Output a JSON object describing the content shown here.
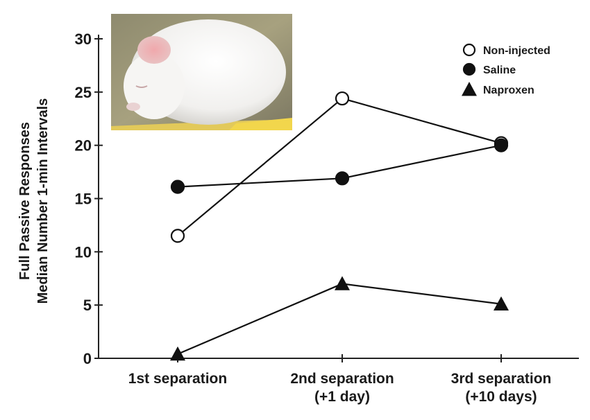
{
  "chart_data": {
    "type": "line",
    "categories": [
      "1st separation",
      "2nd separation (+1 day)",
      "3rd separation (+10 days)"
    ],
    "category_lines": [
      [
        "1st separation"
      ],
      [
        "2nd separation",
        "(+1 day)"
      ],
      [
        "3rd separation",
        "(+10 days)"
      ]
    ],
    "ylabel_lines": [
      "Full Passive Responses",
      "Median Number 1-min Intervals"
    ],
    "ylim": [
      0,
      30
    ],
    "yticks": [
      0,
      5,
      10,
      15,
      20,
      25,
      30
    ],
    "grid": false,
    "legend_position": "top-right",
    "series": [
      {
        "name": "Non-injected",
        "values": [
          11.5,
          24.4,
          20.2
        ],
        "marker": "open-circle",
        "color": "#111111"
      },
      {
        "name": "Saline",
        "values": [
          16.1,
          16.9,
          20.0
        ],
        "marker": "filled-circle",
        "color": "#111111"
      },
      {
        "name": "Naproxen",
        "values": [
          0.4,
          7.0,
          5.1
        ],
        "marker": "filled-triangle",
        "color": "#111111"
      }
    ],
    "inset_image": "photo-of-white-mouse"
  }
}
